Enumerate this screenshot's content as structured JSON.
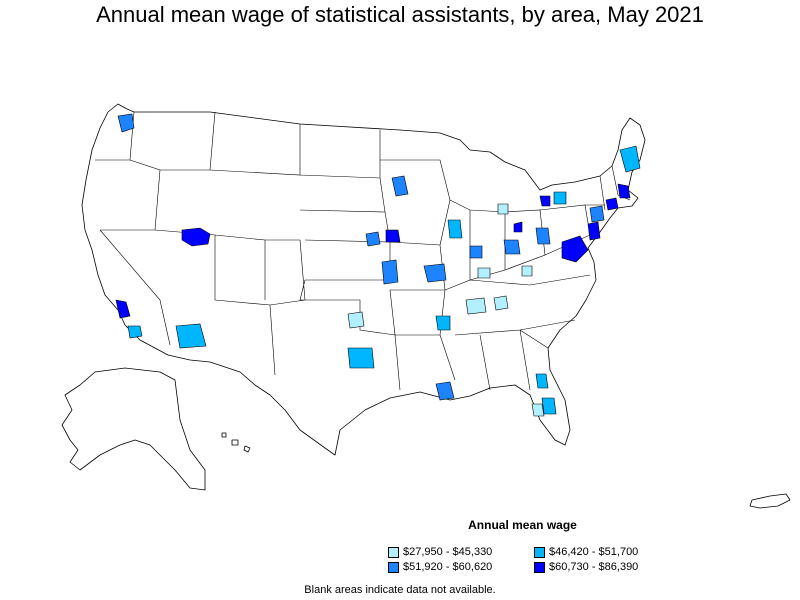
{
  "title": "Annual mean wage of statistical assistants, by area, May 2021",
  "legend": {
    "title": "Annual mean wage",
    "items": [
      {
        "label": "$27,950 - $45,330",
        "color": "#b3f0ff"
      },
      {
        "label": "$46,420 - $51,700",
        "color": "#00b7ff"
      },
      {
        "label": "$51,920 - $60,620",
        "color": "#1e83ff"
      },
      {
        "label": "$60,730 - $86,390",
        "color": "#0000ff"
      }
    ]
  },
  "note": "Blank areas indicate data not available.",
  "colors": {
    "background": "#ffffff",
    "border": "#000000",
    "empty_area": "#ffffff"
  }
}
